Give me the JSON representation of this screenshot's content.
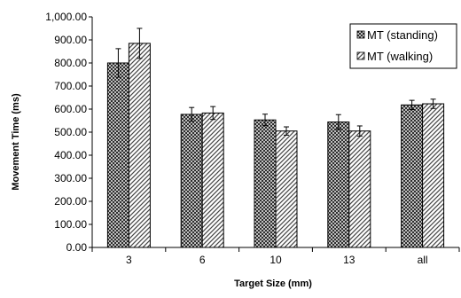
{
  "chart_data": {
    "type": "bar",
    "xlabel": "Target Size (mm)",
    "ylabel": "Movement Time (ms)",
    "categories": [
      "3",
      "6",
      "10",
      "13",
      "all"
    ],
    "ylim": [
      0,
      1000
    ],
    "yticks": [
      0,
      100,
      200,
      300,
      400,
      500,
      600,
      700,
      800,
      900,
      1000
    ],
    "ytick_labels": [
      "0.00",
      "100.00",
      "200.00",
      "300.00",
      "400.00",
      "500.00",
      "600.00",
      "700.00",
      "800.00",
      "900.00",
      "1,000.00"
    ],
    "grid": false,
    "legend_position": "top-right",
    "series": [
      {
        "name": "MT (standing)",
        "pattern": "crosshatch",
        "values": [
          800,
          577,
          553,
          544,
          618
        ],
        "error": [
          62,
          30,
          25,
          32,
          20
        ]
      },
      {
        "name": "MT (walking)",
        "pattern": "diagonal",
        "values": [
          885,
          583,
          505,
          505,
          623
        ],
        "error": [
          65,
          28,
          18,
          22,
          20
        ]
      }
    ]
  }
}
